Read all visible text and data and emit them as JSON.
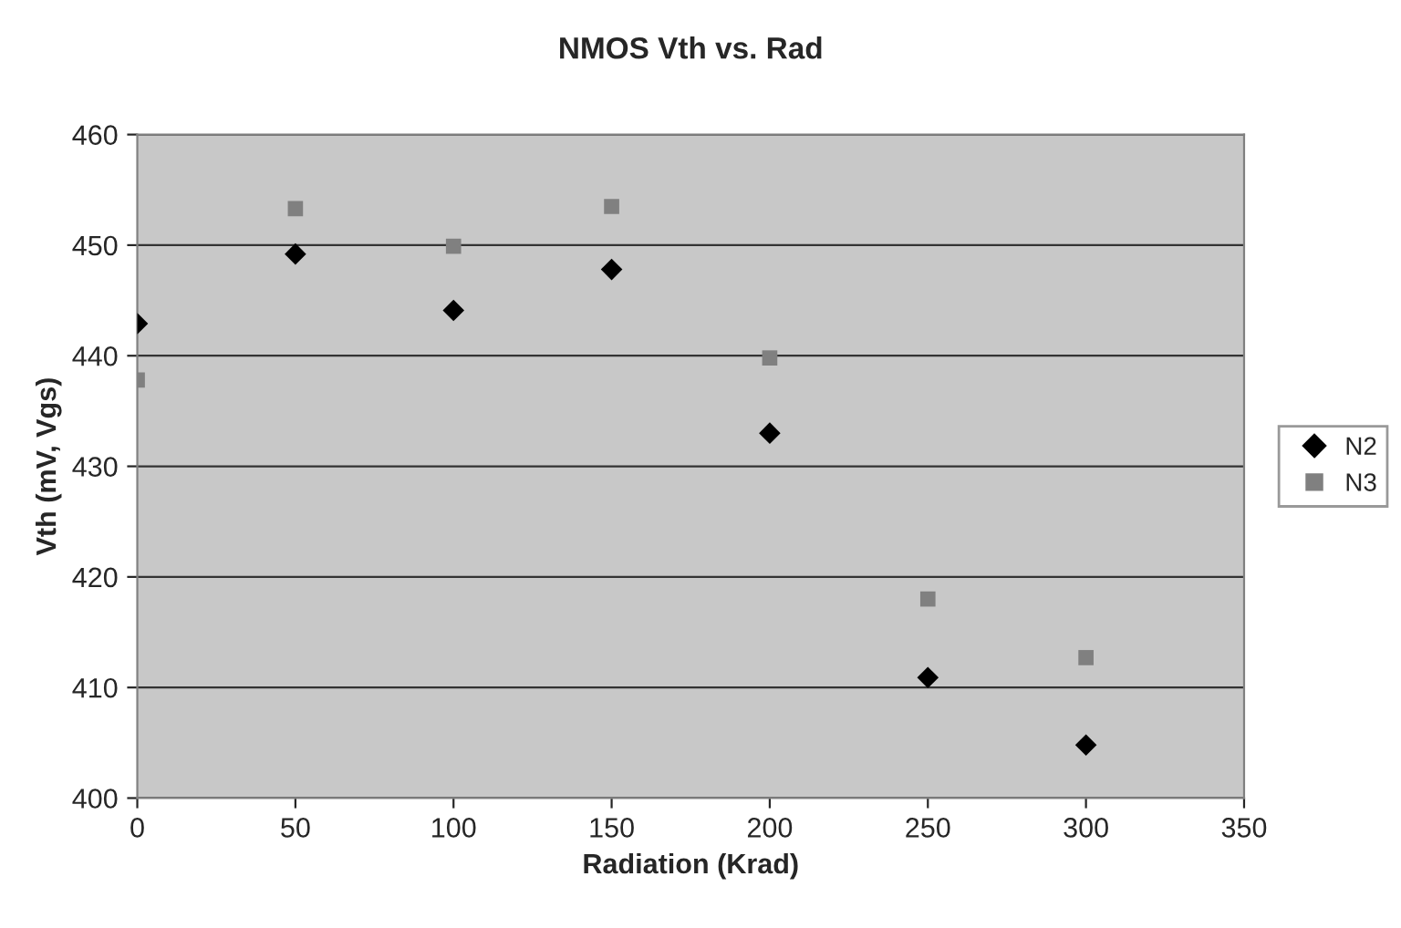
{
  "chart_data": {
    "type": "scatter",
    "title": "NMOS Vth vs. Rad",
    "xlabel": "Radiation (Krad)",
    "ylabel": "Vth (mV, Vgs)",
    "x": [
      0,
      50,
      100,
      150,
      200,
      250,
      300
    ],
    "series": [
      {
        "name": "N2",
        "color": "#000000",
        "marker": "diamond",
        "values": [
          442.9,
          449.2,
          444.1,
          447.8,
          433.0,
          410.9,
          404.8
        ]
      },
      {
        "name": "N3",
        "color": "#808080",
        "marker": "square",
        "values": [
          437.8,
          453.3,
          449.9,
          453.5,
          439.8,
          418.0,
          412.7
        ]
      }
    ],
    "xlim": [
      0,
      350
    ],
    "xticks": [
      0,
      50,
      100,
      150,
      200,
      250,
      300,
      350
    ],
    "ylim": [
      400,
      460
    ],
    "yticks": [
      400,
      410,
      420,
      430,
      440,
      450,
      460
    ],
    "grid": "y",
    "legend": "right"
  }
}
